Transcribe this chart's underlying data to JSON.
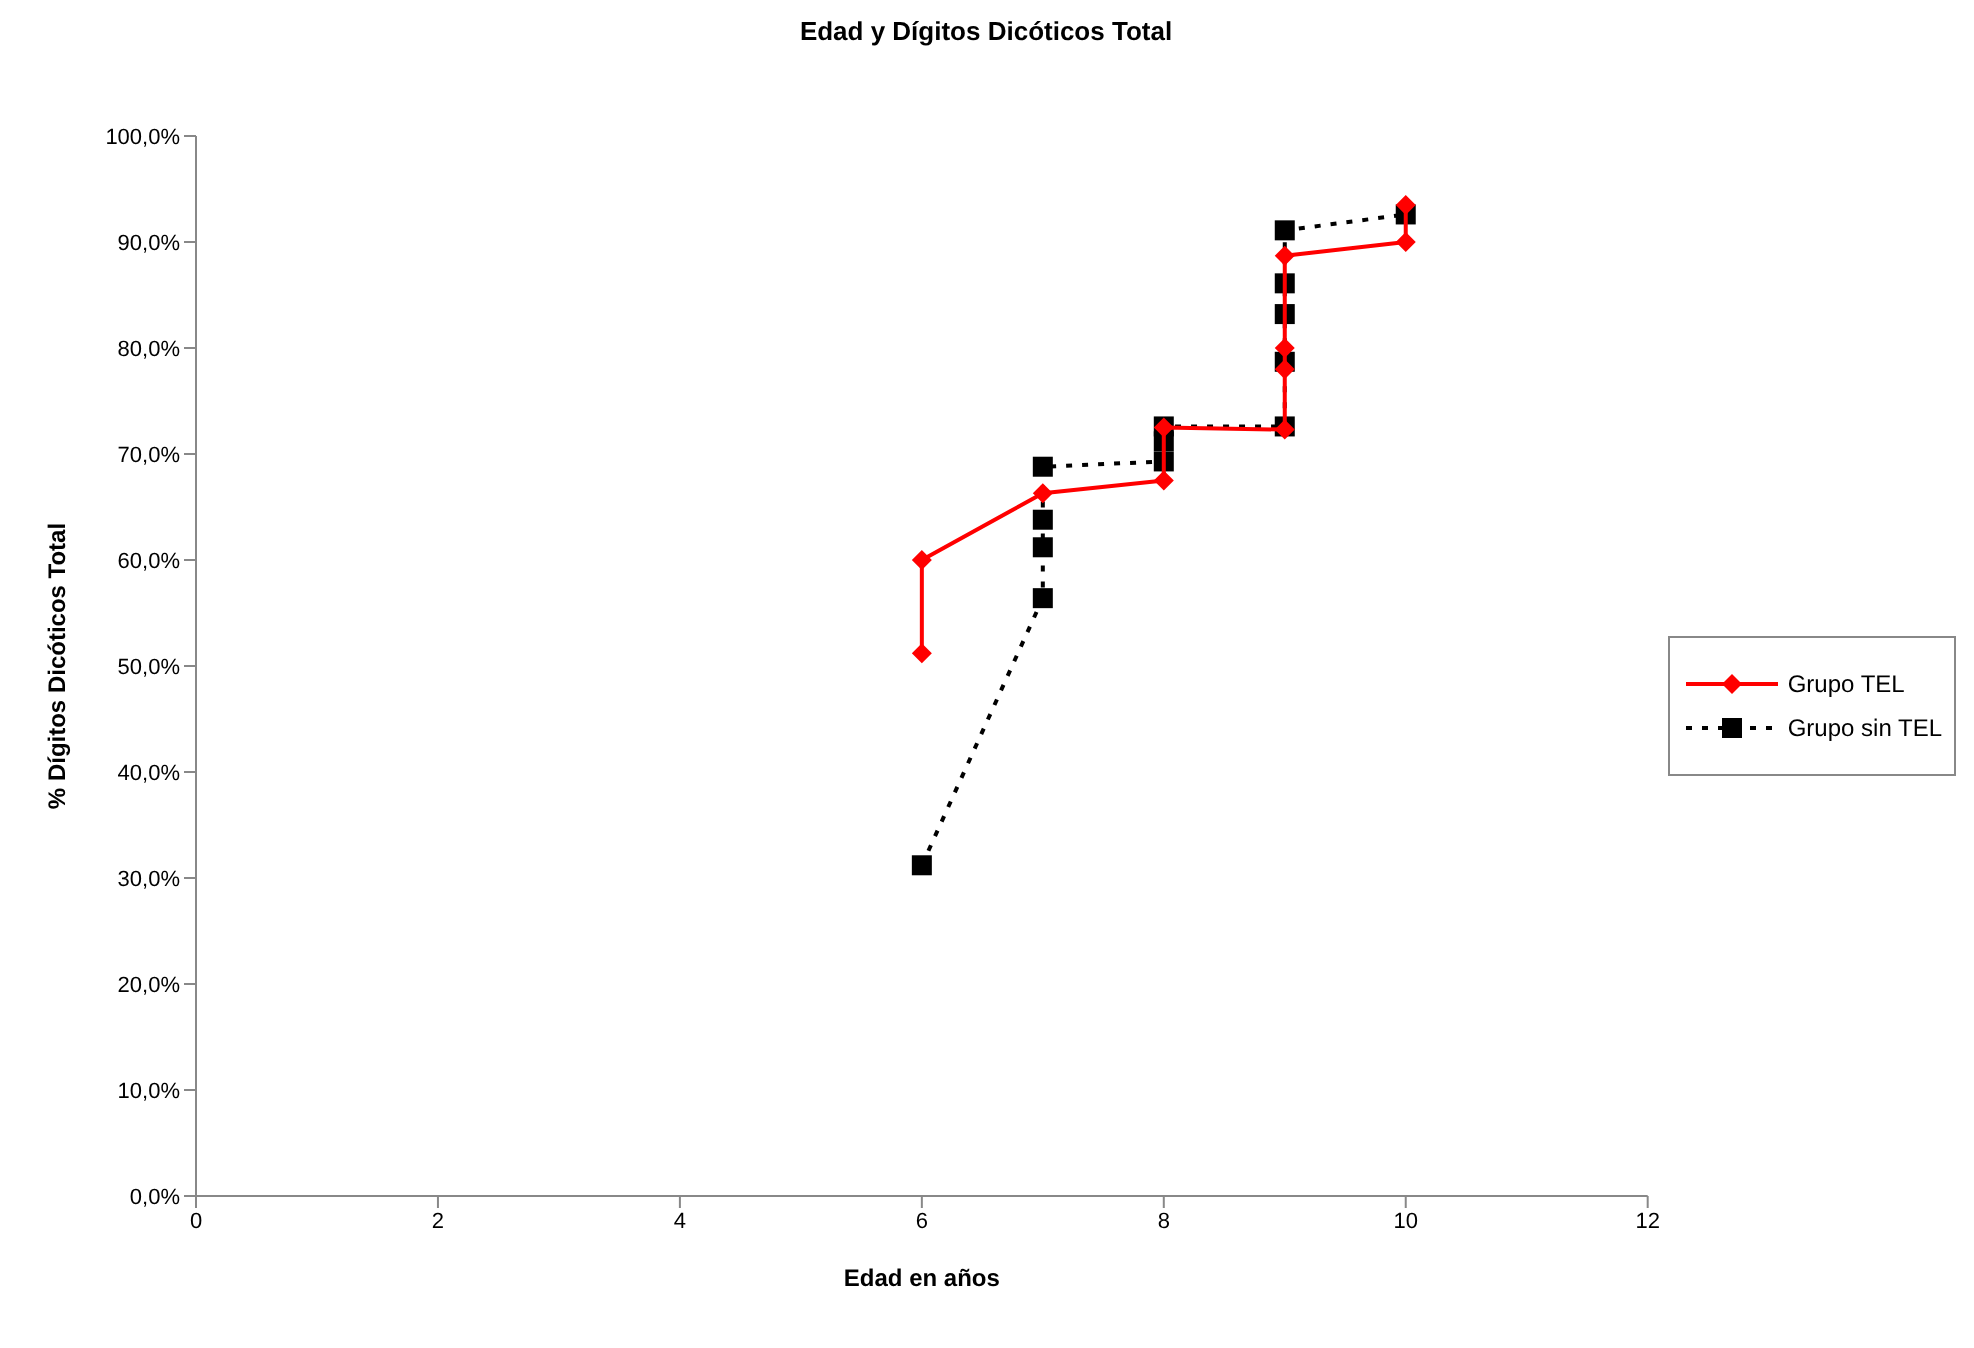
{
  "chart_data": {
    "type": "line",
    "title": "Edad y Dígitos Dicóticos Total",
    "xlabel": "Edad en años",
    "ylabel": "% Dígitos Dicóticos Total",
    "xlim": [
      0,
      12
    ],
    "xticks": [
      0,
      2,
      4,
      6,
      8,
      10,
      12
    ],
    "ylim": [
      0,
      100
    ],
    "yticks": [
      {
        "value": 0,
        "label": "0,0%"
      },
      {
        "value": 10,
        "label": "10,0%"
      },
      {
        "value": 20,
        "label": "20,0%"
      },
      {
        "value": 30,
        "label": "30,0%"
      },
      {
        "value": 40,
        "label": "40,0%"
      },
      {
        "value": 50,
        "label": "50,0%"
      },
      {
        "value": 60,
        "label": "60,0%"
      },
      {
        "value": 70,
        "label": "70,0%"
      },
      {
        "value": 80,
        "label": "80,0%"
      },
      {
        "value": 90,
        "label": "90,0%"
      },
      {
        "value": 100,
        "label": "100,0%"
      }
    ],
    "grid": false,
    "legend": "right",
    "series": [
      {
        "name": "Grupo TEL",
        "color": "#ff0000",
        "marker": "diamond",
        "line_style": "solid",
        "x": [
          6,
          6,
          7,
          8,
          8,
          9,
          9,
          9,
          9,
          10,
          10
        ],
        "values": [
          51.2,
          60,
          66.3,
          67.5,
          72.5,
          72.3,
          78,
          80,
          88.7,
          90,
          93.5
        ]
      },
      {
        "name": "Grupo sin TEL",
        "color": "#000000",
        "marker": "square",
        "line_style": "dotted",
        "x": [
          6,
          7,
          7,
          7,
          7,
          8,
          8,
          8,
          9,
          9,
          9,
          9,
          9,
          10
        ],
        "values": [
          31.2,
          56.4,
          61.2,
          63.8,
          68.8,
          69.3,
          71.2,
          72.6,
          72.6,
          78.7,
          83.2,
          86.1,
          91.1,
          92.6
        ]
      }
    ]
  }
}
